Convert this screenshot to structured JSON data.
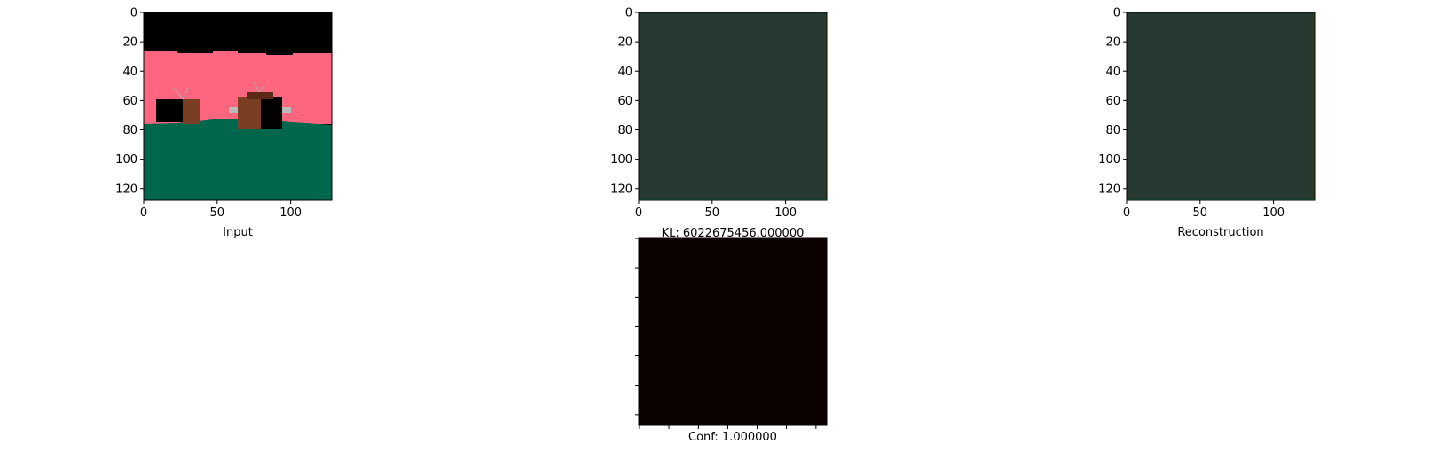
{
  "chart_data": [
    {
      "type": "image",
      "xlabel": "Input",
      "xlim": [
        0,
        128
      ],
      "ylim": [
        128,
        0
      ],
      "xticks": [
        0,
        50,
        100
      ],
      "yticks": [
        0,
        20,
        40,
        60,
        80,
        100,
        120
      ],
      "colors": {
        "sky": "#000000",
        "wall": "#fe6680",
        "floor": "#00664c",
        "tv": "#7a3e22",
        "tv_dark": "#5a2a17",
        "screen": "#000000"
      }
    },
    {
      "type": "image",
      "title": "KL: 6022675456.000000",
      "xlim": [
        0,
        128
      ],
      "ylim": [
        128,
        0
      ],
      "xticks": [
        0,
        50,
        100
      ],
      "yticks": [
        0,
        20,
        40,
        60,
        80,
        100,
        120
      ],
      "colors": {
        "fill": "#263a32",
        "edge": "#1a7a5a"
      }
    },
    {
      "type": "image",
      "xlabel": "Reconstruction",
      "xlim": [
        0,
        128
      ],
      "ylim": [
        128,
        0
      ],
      "xticks": [
        0,
        50,
        100
      ],
      "yticks": [
        0,
        20,
        40,
        60,
        80,
        100,
        120
      ],
      "colors": {
        "fill": "#263a32",
        "edge": "#1a7a5a"
      }
    },
    {
      "type": "image",
      "xlabel": "Conf: 1.000000",
      "colors": {
        "fill": "#0c0202"
      }
    }
  ]
}
